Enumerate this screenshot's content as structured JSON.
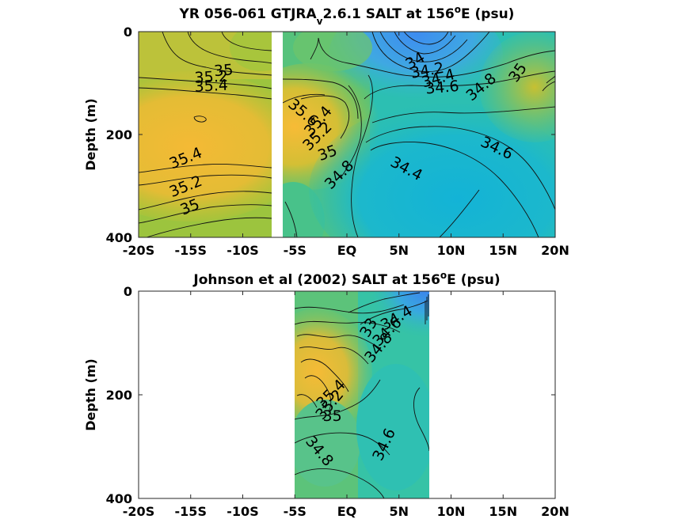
{
  "chart_data": [
    {
      "type": "contour",
      "title_main": "YR 056-061 GTJRA",
      "title_sub": "v",
      "title_rest": "2.6.1 SALT at 156",
      "title_sup": "o",
      "title_end": "E (psu)",
      "xlabel": "",
      "ylabel": "Depth (m)",
      "xlim": [
        -20,
        20
      ],
      "ylim": [
        0,
        400
      ],
      "y_reversed": true,
      "x_ticks": [
        -20,
        -15,
        -10,
        -5,
        0,
        5,
        10,
        15,
        20
      ],
      "x_tick_labels": [
        "-20S",
        "-15S",
        "-10S",
        "-5S",
        "EQ",
        "5N",
        "10N",
        "15N",
        "20N"
      ],
      "y_ticks": [
        0,
        200,
        400
      ],
      "y_tick_labels": [
        "0",
        "200",
        "400"
      ],
      "data_gap_x": [
        -6.6,
        -5.8
      ],
      "contour_labels": [
        {
          "text": "35",
          "x": -11.8,
          "y": 85,
          "rot": -5
        },
        {
          "text": "35.2",
          "x": -13.0,
          "y": 98,
          "rot": -3
        },
        {
          "text": "35.4",
          "x": -13.0,
          "y": 115,
          "rot": -3
        },
        {
          "text": "35.4",
          "x": -15.3,
          "y": 255,
          "rot": -22
        },
        {
          "text": "35.2",
          "x": -15.3,
          "y": 310,
          "rot": -22
        },
        {
          "text": "35",
          "x": -14.9,
          "y": 350,
          "rot": -22
        },
        {
          "text": "35.6",
          "x": -4.5,
          "y": 165,
          "rot": 40
        },
        {
          "text": "35.4",
          "x": -2.4,
          "y": 180,
          "rot": -50
        },
        {
          "text": "35.2",
          "x": -2.5,
          "y": 210,
          "rot": -45
        },
        {
          "text": "35",
          "x": -1.7,
          "y": 245,
          "rot": -20
        },
        {
          "text": "34.8",
          "x": -0.4,
          "y": 285,
          "rot": -45
        },
        {
          "text": "34.4",
          "x": 5.5,
          "y": 275,
          "rot": 28
        },
        {
          "text": "34",
          "x": 6.8,
          "y": 65,
          "rot": -30
        },
        {
          "text": "34.2",
          "x": 7.8,
          "y": 85,
          "rot": -10
        },
        {
          "text": "34.4",
          "x": 8.9,
          "y": 100,
          "rot": -15
        },
        {
          "text": "34.6",
          "x": 9.2,
          "y": 118,
          "rot": -5
        },
        {
          "text": "34.8",
          "x": 13.2,
          "y": 115,
          "rot": -40
        },
        {
          "text": "35",
          "x": 16.8,
          "y": 85,
          "rot": -55
        },
        {
          "text": "34.6",
          "x": 14.2,
          "y": 235,
          "rot": 25
        }
      ]
    },
    {
      "type": "contour",
      "title_main": "Johnson et al (2002) SALT at 156",
      "title_sup": "o",
      "title_end": "E (psu)",
      "xlabel": "",
      "ylabel": "Depth (m)",
      "xlim": [
        -20,
        20
      ],
      "ylim": [
        0,
        400
      ],
      "y_reversed": true,
      "x_ticks": [
        -20,
        -15,
        -10,
        -5,
        0,
        5,
        10,
        15,
        20
      ],
      "x_tick_labels": [
        "-20S",
        "-15S",
        "-10S",
        "-5S",
        "EQ",
        "5N",
        "10N",
        "15N",
        "20N"
      ],
      "y_ticks": [
        0,
        200,
        400
      ],
      "y_tick_labels": [
        "0",
        "200",
        "400"
      ],
      "data_extent_x": [
        -5,
        8
      ],
      "contour_labels": [
        {
          "text": "34.4",
          "x": 5.0,
          "y": 60,
          "rot": -30
        },
        {
          "text": "34.6",
          "x": 4.2,
          "y": 85,
          "rot": -45
        },
        {
          "text": "33",
          "x": 2.5,
          "y": 75,
          "rot": -60
        },
        {
          "text": "34.8",
          "x": 3.4,
          "y": 115,
          "rot": -50
        },
        {
          "text": "35.4",
          "x": -1.2,
          "y": 205,
          "rot": -45
        },
        {
          "text": "35.2",
          "x": -1.3,
          "y": 225,
          "rot": -50
        },
        {
          "text": "35",
          "x": -1.4,
          "y": 250,
          "rot": 0
        },
        {
          "text": "34.8",
          "x": -3.0,
          "y": 315,
          "rot": 50
        },
        {
          "text": "34.6",
          "x": 4.0,
          "y": 300,
          "rot": -65
        }
      ]
    }
  ]
}
